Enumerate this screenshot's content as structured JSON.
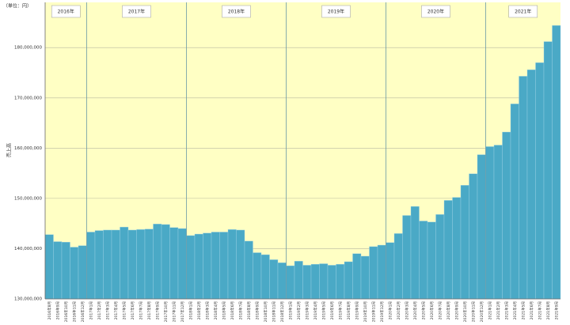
{
  "chart_data": {
    "type": "bar",
    "unit_label": "（単位：円）",
    "y_label": "売上高",
    "year_labels": [
      "2016年",
      "2017年",
      "2018年",
      "2019年",
      "2020年",
      "2021年"
    ],
    "categories": [
      "2016年8月",
      "2016年9月",
      "2016年10月",
      "2016年11月",
      "2016年12月",
      "2017年1月",
      "2017年2月",
      "2017年3月",
      "2017年4月",
      "2017年5月",
      "2017年6月",
      "2017年7月",
      "2017年8月",
      "2017年9月",
      "2017年10月",
      "2017年11月",
      "2017年12月",
      "2018年1月",
      "2018年2月",
      "2018年3月",
      "2018年4月",
      "2018年5月",
      "2018年6月",
      "2018年7月",
      "2018年8月",
      "2018年9月",
      "2018年10月",
      "2018年11月",
      "2018年12月",
      "2019年1月",
      "2019年2月",
      "2019年3月",
      "2019年4月",
      "2019年5月",
      "2019年6月",
      "2019年7月",
      "2019年8月",
      "2019年9月",
      "2019年10月",
      "2019年11月",
      "2019年12月",
      "2020年1月",
      "2020年2月",
      "2020年3月",
      "2020年4月",
      "2020年5月",
      "2020年6月",
      "2020年7月",
      "2020年8月",
      "2020年9月",
      "2020年10月",
      "2020年11月",
      "2020年12月",
      "2021年1月",
      "2021年2月",
      "2021年3月",
      "2021年4月",
      "2021年5月",
      "2021年6月",
      "2021年7月",
      "2021年8月",
      "2021年9月"
    ],
    "values": [
      142800000,
      141400000,
      141300000,
      140300000,
      140600000,
      143300000,
      143600000,
      143700000,
      143700000,
      144300000,
      143700000,
      143800000,
      143900000,
      144900000,
      144800000,
      144200000,
      144000000,
      142600000,
      142900000,
      143100000,
      143300000,
      143300000,
      143800000,
      143700000,
      141500000,
      139200000,
      138800000,
      137800000,
      137200000,
      136600000,
      137500000,
      136700000,
      136900000,
      137000000,
      136700000,
      136900000,
      137400000,
      139000000,
      138500000,
      140400000,
      140700000,
      141200000,
      143000000,
      146600000,
      148400000,
      145500000,
      145300000,
      146800000,
      149600000,
      150200000,
      152600000,
      154900000,
      158700000,
      160300000,
      160600000,
      163200000,
      168800000,
      174300000,
      175600000,
      177000000,
      181200000,
      184400000
    ],
    "color": "#4aa9c6",
    "background": "#ffffc4",
    "ylim": [
      130000000,
      189000000
    ],
    "yticks": [
      {
        "value": 130000000,
        "label": "130,000,000"
      },
      {
        "value": 140000000,
        "label": "140,000,000"
      },
      {
        "value": 150000000,
        "label": "150,000,000"
      },
      {
        "value": 160000000,
        "label": "160,000,000"
      },
      {
        "value": 170000000,
        "label": "170,000,000"
      },
      {
        "value": 180000000,
        "label": "180,000,000"
      }
    ],
    "grid": true
  }
}
